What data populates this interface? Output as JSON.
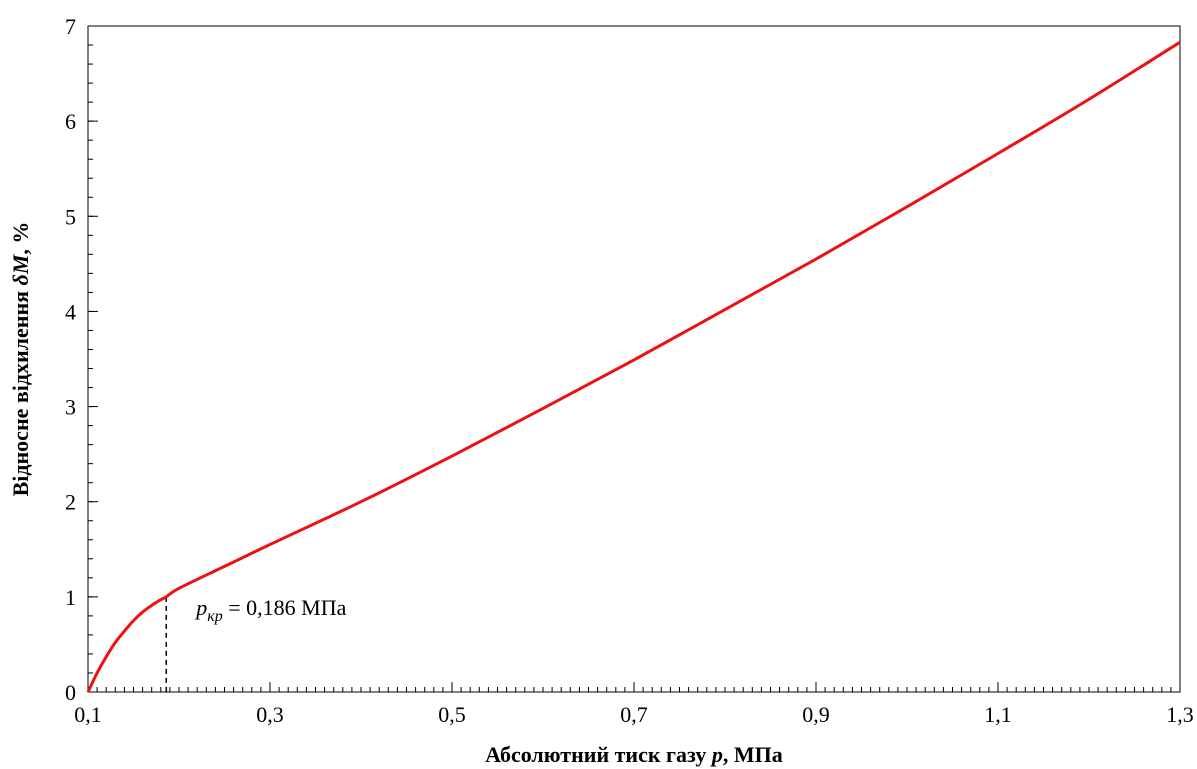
{
  "chart_data": {
    "type": "line",
    "xlabel_prefix": "Абсолютний тиск газу ",
    "xlabel_var": "p",
    "xlabel_suffix": ", МПа",
    "ylabel_prefix": "Відносне відхилення ",
    "ylabel_var": "δM",
    "ylabel_suffix": ", %",
    "xlim": [
      0.1,
      1.3
    ],
    "ylim": [
      0,
      7
    ],
    "x_ticks": [
      0.1,
      0.3,
      0.5,
      0.7,
      0.9,
      1.1,
      1.3
    ],
    "x_tick_labels": [
      "0,1",
      "0,3",
      "0,5",
      "0,7",
      "0,9",
      "1,1",
      "1,3"
    ],
    "y_ticks": [
      0,
      1,
      2,
      3,
      4,
      5,
      6,
      7
    ],
    "y_tick_labels": [
      "0",
      "1",
      "2",
      "3",
      "4",
      "5",
      "6",
      "7"
    ],
    "x_minor_step": 0.01,
    "y_minor_step": 0.2,
    "grid": false,
    "series": [
      {
        "color": "#ee1111",
        "x": [
          0.1,
          0.11,
          0.12,
          0.13,
          0.14,
          0.15,
          0.16,
          0.17,
          0.18,
          0.186,
          0.2,
          0.25,
          0.3,
          0.4,
          0.5,
          0.6,
          0.7,
          0.8,
          0.9,
          1.0,
          1.1,
          1.2,
          1.3
        ],
        "y": [
          0,
          0.2,
          0.37,
          0.52,
          0.64,
          0.75,
          0.84,
          0.91,
          0.97,
          1.0,
          1.09,
          1.32,
          1.55,
          2.0,
          2.48,
          2.98,
          3.49,
          4.02,
          4.55,
          5.1,
          5.66,
          6.23,
          6.83
        ]
      }
    ],
    "annotation": {
      "var": "p",
      "subscript": "кр",
      "text": " = 0,186 МПа",
      "x": 0.186,
      "y": 1.0
    }
  }
}
